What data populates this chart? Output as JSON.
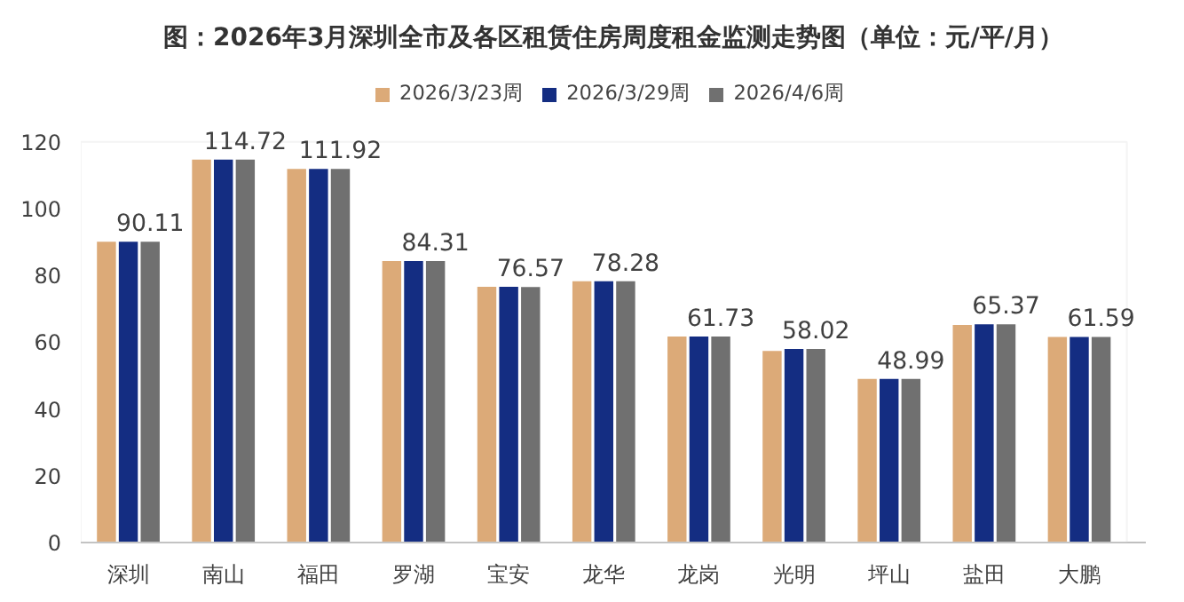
{
  "chart_data": {
    "type": "bar",
    "title": "图：2026年3月深圳全市及各区租赁住房周度租金监测走势图（单位：元/平/月）",
    "categories": [
      "深圳",
      "南山",
      "福田",
      "罗湖",
      "宝安",
      "龙华",
      "龙岗",
      "光明",
      "坪山",
      "盐田",
      "大鹏"
    ],
    "series": [
      {
        "name": "2026/3/23周",
        "color": "#dcaa78",
        "values": [
          90.1,
          114.7,
          111.9,
          84.3,
          76.6,
          78.3,
          61.7,
          57.4,
          49.0,
          65.2,
          61.6
        ]
      },
      {
        "name": "2026/3/29周",
        "color": "#142d82",
        "values": [
          90.1,
          114.7,
          111.9,
          84.3,
          76.6,
          78.3,
          61.7,
          58.0,
          49.0,
          65.4,
          61.6
        ]
      },
      {
        "name": "2026/4/6周",
        "color": "#707070",
        "values": [
          90.11,
          114.72,
          111.92,
          84.31,
          76.57,
          78.28,
          61.73,
          58.02,
          48.99,
          65.37,
          61.59
        ],
        "value_labels": [
          "90.11",
          "114.72",
          "111.92",
          "84.31",
          "76.57",
          "78.28",
          "61.73",
          "58.02",
          "48.99",
          "65.37",
          "61.59"
        ]
      }
    ],
    "ylim": [
      0,
      120
    ],
    "yticks": [
      0,
      20,
      40,
      60,
      80,
      100,
      120
    ],
    "grid": false,
    "legend": "top"
  }
}
